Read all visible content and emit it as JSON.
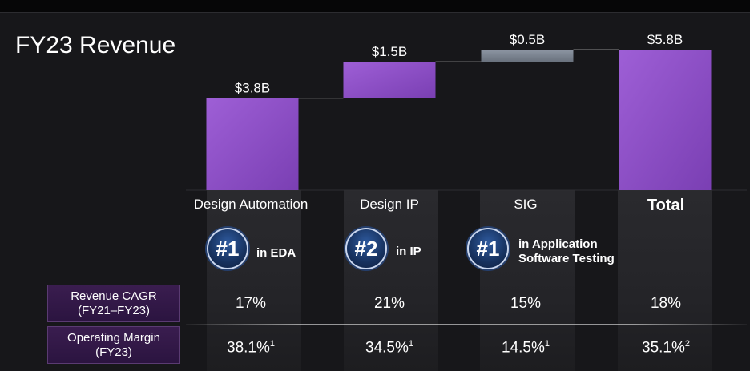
{
  "title": "FY23 Revenue",
  "chart_data": {
    "type": "waterfall",
    "categories": [
      "Design Automation",
      "Design IP",
      "SIG",
      "Total"
    ],
    "values": [
      3.8,
      1.5,
      0.5,
      5.8
    ],
    "value_labels": [
      "$3.8B",
      "$1.5B",
      "$0.5B",
      "$5.8B"
    ],
    "is_total": [
      false,
      false,
      false,
      true
    ],
    "units": "$B",
    "colors": {
      "purple": "#8a4cc0",
      "purple_light": "#9c5dd3",
      "gray": "#7b8593",
      "connector": "#8a8a8a"
    }
  },
  "rankings": [
    {
      "rank": "#1",
      "text": "in EDA"
    },
    {
      "rank": "#2",
      "text": "in IP"
    },
    {
      "rank": "#1",
      "text_line1": "in Application",
      "text_line2": "Software Testing"
    }
  ],
  "table": {
    "rows": [
      {
        "label_line1": "Revenue CAGR",
        "label_line2": "(FY21–FY23)",
        "values": [
          "17%",
          "21%",
          "15%",
          "18%"
        ],
        "notes": [
          "",
          "",
          "",
          ""
        ]
      },
      {
        "label_line1": "Operating Margin",
        "label_line2": "(FY23)",
        "values": [
          "38.1%",
          "34.5%",
          "14.5%",
          "35.1%"
        ],
        "notes": [
          "1",
          "1",
          "1",
          "2"
        ]
      }
    ]
  }
}
